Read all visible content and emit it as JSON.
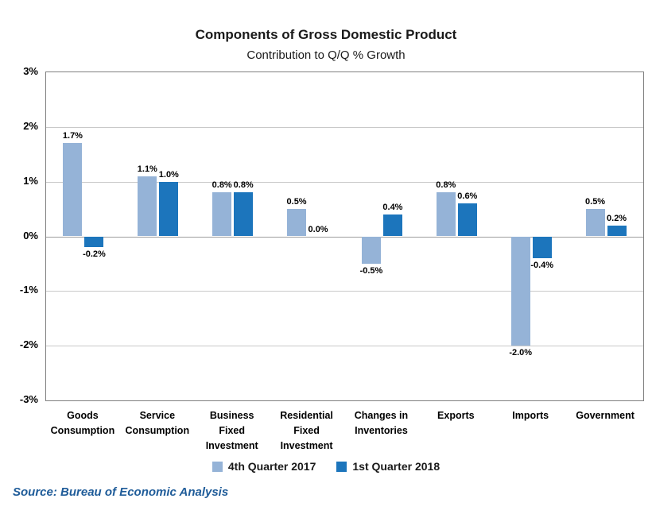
{
  "title": "Components of Gross Domestic Product",
  "subtitle": "Contribution to Q/Q % Growth",
  "source": "Source: Bureau of Economic Analysis",
  "colors": {
    "series_q4_2017": "#95B3D7",
    "series_q1_2018": "#1C75BC",
    "source_text": "#1F5C99",
    "gridline": "#C9C9C9",
    "plot_border": "#7F7F7F"
  },
  "chart_data": {
    "type": "bar",
    "title": "Components of Gross Domestic Product",
    "subtitle": "Contribution to Q/Q % Growth",
    "xlabel": "",
    "ylabel": "Contribution to Q/Q % Growth",
    "ylim": [
      -3,
      3
    ],
    "yticks": [
      3,
      2,
      1,
      0,
      -1,
      -2,
      -3
    ],
    "ytick_labels": [
      "3%",
      "2%",
      "1%",
      "0%",
      "-1%",
      "-2%",
      "-3%"
    ],
    "grid": true,
    "legend_position": "bottom",
    "categories": [
      [
        "Goods",
        "Consumption"
      ],
      [
        "Service",
        "Consumption"
      ],
      [
        "Business",
        "Fixed",
        "Investment"
      ],
      [
        "Residential",
        "Fixed",
        "Investment"
      ],
      [
        "Changes in",
        "Inventories"
      ],
      [
        "Exports"
      ],
      [
        "Imports"
      ],
      [
        "Government"
      ]
    ],
    "series": [
      {
        "name": "4th Quarter 2017",
        "color": "#95B3D7",
        "values": [
          1.7,
          1.1,
          0.8,
          0.5,
          -0.5,
          0.8,
          -2.0,
          0.5
        ],
        "labels": [
          "1.7%",
          "1.1%",
          "0.8%",
          "0.5%",
          "-0.5%",
          "0.8%",
          "-2.0%",
          "0.5%"
        ]
      },
      {
        "name": "1st Quarter 2018",
        "color": "#1C75BC",
        "values": [
          -0.2,
          1.0,
          0.8,
          0.0,
          0.4,
          0.6,
          -0.4,
          0.2
        ],
        "labels": [
          "-0.2%",
          "1.0%",
          "0.8%",
          "0.0%",
          "0.4%",
          "0.6%",
          "-0.4%",
          "0.2%"
        ]
      }
    ]
  }
}
